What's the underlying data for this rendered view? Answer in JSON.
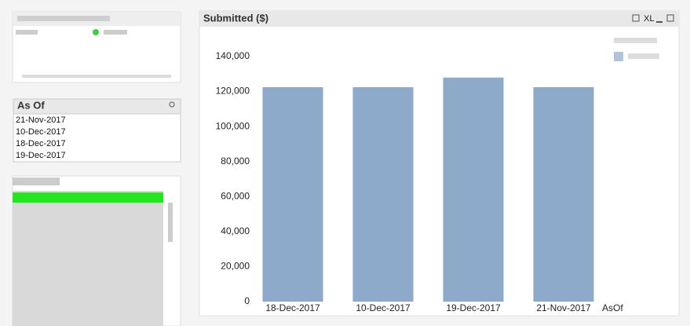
{
  "list_box": {
    "title": "As Of",
    "items": [
      "21-Nov-2017",
      "10-Dec-2017",
      "18-Dec-2017",
      "19-Dec-2017"
    ]
  },
  "toolbar": {
    "excel": "XL"
  },
  "chart_data": {
    "type": "bar",
    "title": "Submitted ($)",
    "x_label": "AsOf",
    "categories": [
      "18-Dec-2017",
      "10-Dec-2017",
      "19-Dec-2017",
      "21-Nov-2017"
    ],
    "values": [
      122500,
      122500,
      128000,
      122500
    ],
    "color": "#8eaacb",
    "ylim": [
      0,
      140000
    ],
    "yticks": [
      {
        "value": 0,
        "label": "0"
      },
      {
        "value": 20000,
        "label": "20,000"
      },
      {
        "value": 40000,
        "label": "40,000"
      },
      {
        "value": 60000,
        "label": "60,000"
      },
      {
        "value": 80000,
        "label": "80,000"
      },
      {
        "value": 100000,
        "label": "100,000"
      },
      {
        "value": 120000,
        "label": "120,000"
      },
      {
        "value": 140000,
        "label": "140,000"
      }
    ],
    "grid": false
  }
}
